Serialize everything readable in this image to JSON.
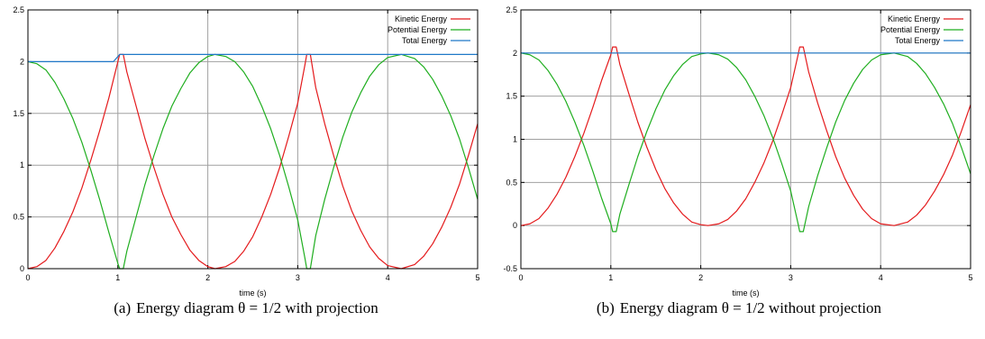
{
  "chart_data": [
    {
      "type": "line",
      "caption": {
        "label": "(a)",
        "text": "Energy diagram θ = 1/2 with projection"
      },
      "xlabel": "time (s)",
      "ylabel": "",
      "xlim": [
        0,
        5
      ],
      "ylim": [
        0,
        2.5
      ],
      "xticks": [
        "0",
        "1",
        "2",
        "3",
        "4",
        "5"
      ],
      "yticks": [
        "0",
        "0.5",
        "1",
        "1.5",
        "2",
        "2.5"
      ],
      "grid": true,
      "legend": "top-right",
      "series": [
        {
          "name": "Kinetic Energy",
          "color": "#e41a1c",
          "points": [
            [
              0,
              0
            ],
            [
              0.1,
              0.02
            ],
            [
              0.2,
              0.08
            ],
            [
              0.3,
              0.2
            ],
            [
              0.4,
              0.36
            ],
            [
              0.5,
              0.55
            ],
            [
              0.6,
              0.78
            ],
            [
              0.7,
              1.05
            ],
            [
              0.8,
              1.34
            ],
            [
              0.9,
              1.65
            ],
            [
              1.0,
              2.0
            ],
            [
              1.02,
              2.07
            ],
            [
              1.06,
              2.07
            ],
            [
              1.1,
              1.9
            ],
            [
              1.2,
              1.58
            ],
            [
              1.3,
              1.26
            ],
            [
              1.4,
              0.98
            ],
            [
              1.5,
              0.72
            ],
            [
              1.6,
              0.5
            ],
            [
              1.7,
              0.33
            ],
            [
              1.8,
              0.18
            ],
            [
              1.9,
              0.08
            ],
            [
              2.0,
              0.02
            ],
            [
              2.08,
              0
            ],
            [
              2.2,
              0.02
            ],
            [
              2.3,
              0.07
            ],
            [
              2.4,
              0.17
            ],
            [
              2.5,
              0.31
            ],
            [
              2.6,
              0.5
            ],
            [
              2.7,
              0.72
            ],
            [
              2.8,
              0.98
            ],
            [
              2.9,
              1.28
            ],
            [
              3.0,
              1.6
            ],
            [
              3.08,
              1.97
            ],
            [
              3.1,
              2.07
            ],
            [
              3.14,
              2.07
            ],
            [
              3.2,
              1.75
            ],
            [
              3.3,
              1.4
            ],
            [
              3.4,
              1.09
            ],
            [
              3.5,
              0.8
            ],
            [
              3.6,
              0.56
            ],
            [
              3.7,
              0.37
            ],
            [
              3.8,
              0.21
            ],
            [
              3.9,
              0.1
            ],
            [
              4.0,
              0.03
            ],
            [
              4.15,
              0
            ],
            [
              4.3,
              0.04
            ],
            [
              4.4,
              0.12
            ],
            [
              4.5,
              0.24
            ],
            [
              4.6,
              0.4
            ],
            [
              4.7,
              0.59
            ],
            [
              4.8,
              0.82
            ],
            [
              4.9,
              1.1
            ],
            [
              5.0,
              1.4
            ]
          ]
        },
        {
          "name": "Potential Energy",
          "color": "#1fae1f",
          "points": [
            [
              0,
              2.0
            ],
            [
              0.1,
              1.98
            ],
            [
              0.2,
              1.92
            ],
            [
              0.3,
              1.8
            ],
            [
              0.4,
              1.64
            ],
            [
              0.5,
              1.45
            ],
            [
              0.6,
              1.22
            ],
            [
              0.7,
              0.95
            ],
            [
              0.8,
              0.66
            ],
            [
              0.9,
              0.35
            ],
            [
              1.0,
              0.05
            ],
            [
              1.02,
              0
            ],
            [
              1.06,
              0
            ],
            [
              1.1,
              0.17
            ],
            [
              1.2,
              0.49
            ],
            [
              1.3,
              0.81
            ],
            [
              1.4,
              1.09
            ],
            [
              1.5,
              1.35
            ],
            [
              1.6,
              1.57
            ],
            [
              1.7,
              1.74
            ],
            [
              1.8,
              1.89
            ],
            [
              1.9,
              1.99
            ],
            [
              2.0,
              2.05
            ],
            [
              2.08,
              2.07
            ],
            [
              2.2,
              2.05
            ],
            [
              2.3,
              2.0
            ],
            [
              2.4,
              1.9
            ],
            [
              2.5,
              1.76
            ],
            [
              2.6,
              1.57
            ],
            [
              2.7,
              1.35
            ],
            [
              2.8,
              1.09
            ],
            [
              2.9,
              0.79
            ],
            [
              3.0,
              0.47
            ],
            [
              3.08,
              0.1
            ],
            [
              3.1,
              0
            ],
            [
              3.14,
              0
            ],
            [
              3.2,
              0.32
            ],
            [
              3.3,
              0.67
            ],
            [
              3.4,
              0.98
            ],
            [
              3.5,
              1.27
            ],
            [
              3.6,
              1.51
            ],
            [
              3.7,
              1.7
            ],
            [
              3.8,
              1.86
            ],
            [
              3.9,
              1.97
            ],
            [
              4.0,
              2.04
            ],
            [
              4.15,
              2.07
            ],
            [
              4.3,
              2.03
            ],
            [
              4.4,
              1.95
            ],
            [
              4.5,
              1.83
            ],
            [
              4.6,
              1.67
            ],
            [
              4.7,
              1.48
            ],
            [
              4.8,
              1.25
            ],
            [
              4.9,
              0.97
            ],
            [
              5.0,
              0.67
            ]
          ]
        },
        {
          "name": "Total Energy",
          "color": "#1f78c8",
          "points": [
            [
              0,
              2.0
            ],
            [
              0.95,
              2.0
            ],
            [
              1.02,
              2.07
            ],
            [
              5.0,
              2.07
            ]
          ]
        }
      ]
    },
    {
      "type": "line",
      "caption": {
        "label": "(b)",
        "text": "Energy diagram θ = 1/2 without projection"
      },
      "xlabel": "time (s)",
      "ylabel": "",
      "xlim": [
        0,
        5
      ],
      "ylim": [
        -0.5,
        2.5
      ],
      "xticks": [
        "0",
        "1",
        "2",
        "3",
        "4",
        "5"
      ],
      "yticks": [
        "-0.5",
        "0",
        "0.5",
        "1",
        "1.5",
        "2",
        "2.5"
      ],
      "grid": true,
      "legend": "top-right",
      "series": [
        {
          "name": "Kinetic Energy",
          "color": "#e41a1c",
          "points": [
            [
              0,
              0
            ],
            [
              0.1,
              0.02
            ],
            [
              0.2,
              0.08
            ],
            [
              0.3,
              0.2
            ],
            [
              0.4,
              0.36
            ],
            [
              0.5,
              0.56
            ],
            [
              0.6,
              0.8
            ],
            [
              0.7,
              1.07
            ],
            [
              0.8,
              1.37
            ],
            [
              0.9,
              1.69
            ],
            [
              1.0,
              1.98
            ],
            [
              1.02,
              2.07
            ],
            [
              1.06,
              2.07
            ],
            [
              1.1,
              1.87
            ],
            [
              1.2,
              1.53
            ],
            [
              1.3,
              1.2
            ],
            [
              1.4,
              0.91
            ],
            [
              1.5,
              0.65
            ],
            [
              1.6,
              0.43
            ],
            [
              1.7,
              0.26
            ],
            [
              1.8,
              0.13
            ],
            [
              1.9,
              0.04
            ],
            [
              2.0,
              0.01
            ],
            [
              2.08,
              0
            ],
            [
              2.2,
              0.02
            ],
            [
              2.3,
              0.07
            ],
            [
              2.4,
              0.17
            ],
            [
              2.5,
              0.31
            ],
            [
              2.6,
              0.5
            ],
            [
              2.7,
              0.72
            ],
            [
              2.8,
              0.98
            ],
            [
              2.9,
              1.28
            ],
            [
              3.0,
              1.6
            ],
            [
              3.08,
              1.97
            ],
            [
              3.1,
              2.07
            ],
            [
              3.14,
              2.07
            ],
            [
              3.2,
              1.78
            ],
            [
              3.3,
              1.42
            ],
            [
              3.4,
              1.1
            ],
            [
              3.5,
              0.8
            ],
            [
              3.6,
              0.55
            ],
            [
              3.7,
              0.35
            ],
            [
              3.8,
              0.19
            ],
            [
              3.9,
              0.08
            ],
            [
              4.0,
              0.02
            ],
            [
              4.15,
              0
            ],
            [
              4.3,
              0.04
            ],
            [
              4.4,
              0.12
            ],
            [
              4.5,
              0.24
            ],
            [
              4.6,
              0.4
            ],
            [
              4.7,
              0.59
            ],
            [
              4.8,
              0.82
            ],
            [
              4.9,
              1.1
            ],
            [
              5.0,
              1.4
            ]
          ]
        },
        {
          "name": "Potential Energy",
          "color": "#1fae1f",
          "points": [
            [
              0,
              2.0
            ],
            [
              0.1,
              1.98
            ],
            [
              0.2,
              1.92
            ],
            [
              0.3,
              1.8
            ],
            [
              0.4,
              1.64
            ],
            [
              0.5,
              1.44
            ],
            [
              0.6,
              1.2
            ],
            [
              0.7,
              0.93
            ],
            [
              0.8,
              0.63
            ],
            [
              0.9,
              0.31
            ],
            [
              1.0,
              0.02
            ],
            [
              1.02,
              -0.07
            ],
            [
              1.06,
              -0.07
            ],
            [
              1.1,
              0.13
            ],
            [
              1.2,
              0.47
            ],
            [
              1.3,
              0.8
            ],
            [
              1.4,
              1.09
            ],
            [
              1.5,
              1.35
            ],
            [
              1.6,
              1.57
            ],
            [
              1.7,
              1.74
            ],
            [
              1.8,
              1.87
            ],
            [
              1.9,
              1.96
            ],
            [
              2.0,
              1.99
            ],
            [
              2.08,
              2.0
            ],
            [
              2.2,
              1.98
            ],
            [
              2.3,
              1.93
            ],
            [
              2.4,
              1.83
            ],
            [
              2.5,
              1.69
            ],
            [
              2.6,
              1.5
            ],
            [
              2.7,
              1.28
            ],
            [
              2.8,
              1.02
            ],
            [
              2.9,
              0.72
            ],
            [
              3.0,
              0.4
            ],
            [
              3.08,
              0.03
            ],
            [
              3.1,
              -0.07
            ],
            [
              3.14,
              -0.07
            ],
            [
              3.2,
              0.22
            ],
            [
              3.3,
              0.58
            ],
            [
              3.4,
              0.9
            ],
            [
              3.5,
              1.2
            ],
            [
              3.6,
              1.45
            ],
            [
              3.7,
              1.65
            ],
            [
              3.8,
              1.81
            ],
            [
              3.9,
              1.92
            ],
            [
              4.0,
              1.98
            ],
            [
              4.15,
              2.0
            ],
            [
              4.3,
              1.96
            ],
            [
              4.4,
              1.88
            ],
            [
              4.5,
              1.76
            ],
            [
              4.6,
              1.6
            ],
            [
              4.7,
              1.41
            ],
            [
              4.8,
              1.18
            ],
            [
              4.9,
              0.9
            ],
            [
              5.0,
              0.6
            ]
          ]
        },
        {
          "name": "Total Energy",
          "color": "#1f78c8",
          "points": [
            [
              0,
              2.0
            ],
            [
              5.0,
              2.0
            ]
          ]
        }
      ]
    }
  ]
}
